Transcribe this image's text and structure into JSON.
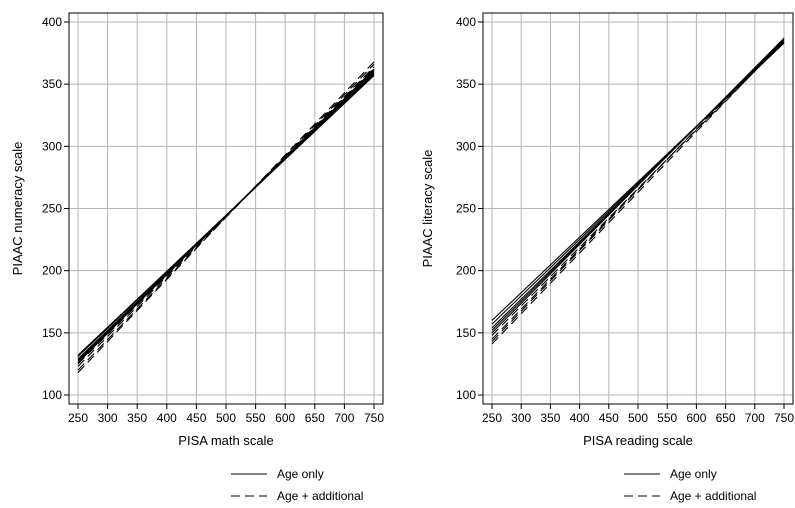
{
  "chart_data": [
    {
      "type": "line",
      "xlabel": "PISA math scale",
      "ylabel": "PIAAC numeracy scale",
      "xlim": [
        250,
        750
      ],
      "ylim": [
        100,
        400
      ],
      "x_ticks": [
        250,
        300,
        350,
        400,
        450,
        500,
        550,
        600,
        650,
        700,
        750
      ],
      "y_ticks": [
        100,
        150,
        200,
        250,
        300,
        350,
        400
      ],
      "grid": true,
      "legend_position": "bottom",
      "legend": [
        "Age only",
        "Age + additional"
      ],
      "series": [
        {
          "style": "solid",
          "x": [
            250,
            750
          ],
          "y": [
            131,
            358
          ]
        },
        {
          "style": "solid",
          "x": [
            250,
            750
          ],
          "y": [
            129,
            359
          ]
        },
        {
          "style": "solid",
          "x": [
            250,
            750
          ],
          "y": [
            128,
            360
          ]
        },
        {
          "style": "solid",
          "x": [
            250,
            750
          ],
          "y": [
            127,
            361
          ]
        },
        {
          "style": "solid",
          "x": [
            250,
            750
          ],
          "y": [
            126,
            362
          ]
        },
        {
          "style": "solid",
          "x": [
            250,
            750
          ],
          "y": [
            132,
            357
          ]
        },
        {
          "style": "dashed",
          "x": [
            250,
            750
          ],
          "y": [
            125,
            363
          ]
        },
        {
          "style": "dashed",
          "x": [
            250,
            750
          ],
          "y": [
            123,
            364
          ]
        },
        {
          "style": "dashed",
          "x": [
            250,
            750
          ],
          "y": [
            120,
            366
          ]
        },
        {
          "style": "dashed",
          "x": [
            250,
            750
          ],
          "y": [
            118,
            368
          ]
        }
      ]
    },
    {
      "type": "line",
      "xlabel": "PISA reading scale",
      "ylabel": "PIAAC literacy scale",
      "xlim": [
        250,
        750
      ],
      "ylim": [
        100,
        400
      ],
      "x_ticks": [
        250,
        300,
        350,
        400,
        450,
        500,
        550,
        600,
        650,
        700,
        750
      ],
      "y_ticks": [
        100,
        150,
        200,
        250,
        300,
        350,
        400
      ],
      "grid": true,
      "legend_position": "bottom",
      "legend": [
        "Age only",
        "Age + additional"
      ],
      "series": [
        {
          "style": "solid",
          "x": [
            250,
            750
          ],
          "y": [
            160,
            383
          ]
        },
        {
          "style": "solid",
          "x": [
            250,
            750
          ],
          "y": [
            157,
            384
          ]
        },
        {
          "style": "solid",
          "x": [
            250,
            750
          ],
          "y": [
            154,
            385
          ]
        },
        {
          "style": "solid",
          "x": [
            250,
            750
          ],
          "y": [
            152,
            386
          ]
        },
        {
          "style": "solid",
          "x": [
            250,
            750
          ],
          "y": [
            150,
            387
          ]
        },
        {
          "style": "dashed",
          "x": [
            250,
            750
          ],
          "y": [
            148,
            384
          ]
        },
        {
          "style": "dashed",
          "x": [
            250,
            750
          ],
          "y": [
            145,
            386
          ]
        },
        {
          "style": "dashed",
          "x": [
            250,
            750
          ],
          "y": [
            143,
            387
          ]
        },
        {
          "style": "dashed",
          "x": [
            250,
            750
          ],
          "y": [
            141,
            385
          ]
        }
      ]
    }
  ]
}
